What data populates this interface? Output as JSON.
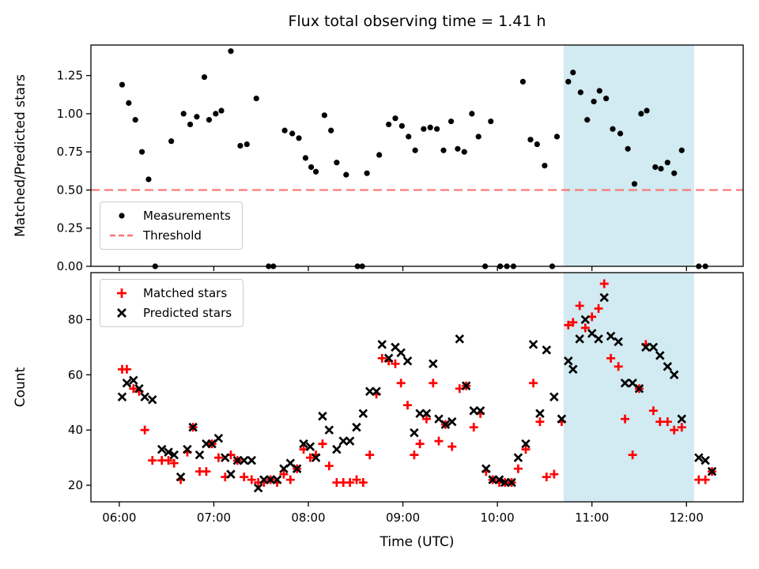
{
  "chart_data": [
    {
      "type": "scatter",
      "title": "Flux total observing time = 1.41 h",
      "xlabel": "",
      "ylabel": "Matched/Predicted stars",
      "xlim": [
        5.7,
        12.6
      ],
      "ylim": [
        0,
        1.45
      ],
      "xticks": [
        6,
        7,
        8,
        9,
        10,
        11,
        12
      ],
      "xtick_labels": [
        "06:00",
        "07:00",
        "08:00",
        "09:00",
        "10:00",
        "11:00",
        "12:00"
      ],
      "show_xtick_labels": false,
      "yticks": [
        0,
        0.25,
        0.5,
        0.75,
        1.0,
        1.25
      ],
      "ytick_labels": [
        "0.00",
        "0.25",
        "0.50",
        "0.75",
        "1.00",
        "1.25"
      ],
      "grid": false,
      "highlight_span": {
        "x0": 10.7,
        "x1": 12.08,
        "color": "#add8e6",
        "opacity": 0.55
      },
      "threshold": {
        "label": "Threshold",
        "value": 0.5,
        "color": "#fb7373",
        "style": "dashed"
      },
      "legend": {
        "position": "lower left",
        "entries": [
          "Measurements",
          "Threshold"
        ]
      },
      "series": [
        {
          "name": "Measurements",
          "marker": "dot",
          "color": "#000000",
          "points": [
            [
              6.03,
              1.19
            ],
            [
              6.1,
              1.07
            ],
            [
              6.17,
              0.96
            ],
            [
              6.24,
              0.75
            ],
            [
              6.31,
              0.57
            ],
            [
              6.38,
              0.0
            ],
            [
              6.55,
              0.82
            ],
            [
              6.68,
              1.0
            ],
            [
              6.75,
              0.93
            ],
            [
              6.82,
              0.98
            ],
            [
              6.9,
              1.24
            ],
            [
              6.95,
              0.96
            ],
            [
              7.02,
              1.0
            ],
            [
              7.08,
              1.02
            ],
            [
              7.18,
              1.41
            ],
            [
              7.28,
              0.79
            ],
            [
              7.35,
              0.8
            ],
            [
              7.45,
              1.1
            ],
            [
              7.58,
              0.0
            ],
            [
              7.63,
              0.0
            ],
            [
              7.75,
              0.89
            ],
            [
              7.83,
              0.87
            ],
            [
              7.9,
              0.84
            ],
            [
              7.97,
              0.71
            ],
            [
              8.03,
              0.65
            ],
            [
              8.08,
              0.62
            ],
            [
              8.17,
              0.99
            ],
            [
              8.24,
              0.89
            ],
            [
              8.3,
              0.68
            ],
            [
              8.4,
              0.6
            ],
            [
              8.52,
              0.0
            ],
            [
              8.57,
              0.0
            ],
            [
              8.62,
              0.61
            ],
            [
              8.75,
              0.73
            ],
            [
              8.85,
              0.93
            ],
            [
              8.92,
              0.97
            ],
            [
              8.99,
              0.92
            ],
            [
              9.06,
              0.85
            ],
            [
              9.13,
              0.76
            ],
            [
              9.22,
              0.9
            ],
            [
              9.29,
              0.91
            ],
            [
              9.36,
              0.9
            ],
            [
              9.43,
              0.76
            ],
            [
              9.51,
              0.95
            ],
            [
              9.58,
              0.77
            ],
            [
              9.65,
              0.75
            ],
            [
              9.73,
              1.0
            ],
            [
              9.8,
              0.85
            ],
            [
              9.87,
              0.0
            ],
            [
              9.93,
              0.95
            ],
            [
              10.03,
              0.0
            ],
            [
              10.1,
              0.0
            ],
            [
              10.17,
              0.0
            ],
            [
              10.27,
              1.21
            ],
            [
              10.35,
              0.83
            ],
            [
              10.42,
              0.8
            ],
            [
              10.5,
              0.66
            ],
            [
              10.58,
              0.0
            ],
            [
              10.63,
              0.85
            ],
            [
              10.75,
              1.21
            ],
            [
              10.8,
              1.27
            ],
            [
              10.88,
              1.14
            ],
            [
              10.95,
              0.96
            ],
            [
              11.02,
              1.08
            ],
            [
              11.08,
              1.15
            ],
            [
              11.15,
              1.1
            ],
            [
              11.22,
              0.9
            ],
            [
              11.3,
              0.87
            ],
            [
              11.38,
              0.77
            ],
            [
              11.45,
              0.54
            ],
            [
              11.52,
              1.0
            ],
            [
              11.58,
              1.02
            ],
            [
              11.67,
              0.65
            ],
            [
              11.73,
              0.64
            ],
            [
              11.8,
              0.68
            ],
            [
              11.87,
              0.61
            ],
            [
              11.95,
              0.76
            ],
            [
              12.13,
              0.0
            ],
            [
              12.2,
              0.0
            ]
          ]
        }
      ]
    },
    {
      "type": "scatter",
      "title": "",
      "xlabel": "Time (UTC)",
      "ylabel": "Count",
      "xlim": [
        5.7,
        12.6
      ],
      "ylim": [
        14,
        97
      ],
      "xticks": [
        6,
        7,
        8,
        9,
        10,
        11,
        12
      ],
      "xtick_labels": [
        "06:00",
        "07:00",
        "08:00",
        "09:00",
        "10:00",
        "11:00",
        "12:00"
      ],
      "show_xtick_labels": true,
      "yticks": [
        20,
        40,
        60,
        80
      ],
      "ytick_labels": [
        "20",
        "40",
        "60",
        "80"
      ],
      "grid": false,
      "highlight_span": {
        "x0": 10.7,
        "x1": 12.08,
        "color": "#add8e6",
        "opacity": 0.55
      },
      "legend": {
        "position": "upper left",
        "entries": [
          "Matched stars",
          "Predicted stars"
        ]
      },
      "series": [
        {
          "name": "Matched stars",
          "marker": "plus",
          "color": "#ff0000",
          "points": [
            [
              6.03,
              62
            ],
            [
              6.08,
              62
            ],
            [
              6.15,
              55
            ],
            [
              6.21,
              54
            ],
            [
              6.27,
              40
            ],
            [
              6.35,
              29
            ],
            [
              6.45,
              29
            ],
            [
              6.52,
              29
            ],
            [
              6.58,
              28
            ],
            [
              6.65,
              22
            ],
            [
              6.72,
              32
            ],
            [
              6.78,
              41
            ],
            [
              6.85,
              25
            ],
            [
              6.92,
              25
            ],
            [
              6.98,
              35
            ],
            [
              7.05,
              30
            ],
            [
              7.12,
              23
            ],
            [
              7.18,
              31
            ],
            [
              7.25,
              29
            ],
            [
              7.32,
              23
            ],
            [
              7.4,
              22
            ],
            [
              7.47,
              21
            ],
            [
              7.53,
              21
            ],
            [
              7.6,
              22
            ],
            [
              7.67,
              21
            ],
            [
              7.74,
              24
            ],
            [
              7.81,
              22
            ],
            [
              7.88,
              26
            ],
            [
              7.95,
              33
            ],
            [
              8.02,
              30
            ],
            [
              8.08,
              31
            ],
            [
              8.15,
              35
            ],
            [
              8.22,
              27
            ],
            [
              8.3,
              21
            ],
            [
              8.37,
              21
            ],
            [
              8.44,
              21
            ],
            [
              8.51,
              22
            ],
            [
              8.58,
              21
            ],
            [
              8.65,
              31
            ],
            [
              8.72,
              53
            ],
            [
              8.78,
              66
            ],
            [
              8.85,
              65
            ],
            [
              8.92,
              64
            ],
            [
              8.98,
              57
            ],
            [
              9.05,
              49
            ],
            [
              9.12,
              31
            ],
            [
              9.18,
              35
            ],
            [
              9.25,
              44
            ],
            [
              9.32,
              57
            ],
            [
              9.38,
              36
            ],
            [
              9.45,
              42
            ],
            [
              9.52,
              34
            ],
            [
              9.6,
              55
            ],
            [
              9.67,
              56
            ],
            [
              9.75,
              41
            ],
            [
              9.82,
              46
            ],
            [
              9.88,
              25
            ],
            [
              9.95,
              22
            ],
            [
              10.02,
              21
            ],
            [
              10.08,
              21
            ],
            [
              10.15,
              21
            ],
            [
              10.22,
              26
            ],
            [
              10.3,
              33
            ],
            [
              10.38,
              57
            ],
            [
              10.45,
              43
            ],
            [
              10.52,
              23
            ],
            [
              10.6,
              24
            ],
            [
              10.68,
              43
            ],
            [
              10.75,
              78
            ],
            [
              10.8,
              79
            ],
            [
              10.87,
              85
            ],
            [
              10.93,
              77
            ],
            [
              11.0,
              81
            ],
            [
              11.07,
              84
            ],
            [
              11.13,
              93
            ],
            [
              11.2,
              66
            ],
            [
              11.28,
              63
            ],
            [
              11.35,
              44
            ],
            [
              11.43,
              31
            ],
            [
              11.5,
              55
            ],
            [
              11.57,
              71
            ],
            [
              11.65,
              47
            ],
            [
              11.72,
              43
            ],
            [
              11.8,
              43
            ],
            [
              11.87,
              40
            ],
            [
              11.95,
              41
            ],
            [
              12.13,
              22
            ],
            [
              12.2,
              22
            ],
            [
              12.27,
              25
            ]
          ]
        },
        {
          "name": "Predicted stars",
          "marker": "x",
          "color": "#000000",
          "points": [
            [
              6.03,
              52
            ],
            [
              6.08,
              57
            ],
            [
              6.15,
              58
            ],
            [
              6.21,
              55
            ],
            [
              6.27,
              52
            ],
            [
              6.35,
              51
            ],
            [
              6.45,
              33
            ],
            [
              6.52,
              32
            ],
            [
              6.58,
              31
            ],
            [
              6.65,
              23
            ],
            [
              6.72,
              33
            ],
            [
              6.78,
              41
            ],
            [
              6.85,
              31
            ],
            [
              6.92,
              35
            ],
            [
              6.98,
              35
            ],
            [
              7.05,
              37
            ],
            [
              7.12,
              30
            ],
            [
              7.18,
              24
            ],
            [
              7.25,
              29
            ],
            [
              7.32,
              29
            ],
            [
              7.4,
              29
            ],
            [
              7.47,
              19
            ],
            [
              7.53,
              22
            ],
            [
              7.6,
              22
            ],
            [
              7.67,
              22
            ],
            [
              7.74,
              26
            ],
            [
              7.81,
              28
            ],
            [
              7.88,
              26
            ],
            [
              7.95,
              35
            ],
            [
              8.02,
              34
            ],
            [
              8.08,
              30
            ],
            [
              8.15,
              45
            ],
            [
              8.22,
              40
            ],
            [
              8.3,
              33
            ],
            [
              8.37,
              36
            ],
            [
              8.44,
              36
            ],
            [
              8.51,
              41
            ],
            [
              8.58,
              46
            ],
            [
              8.65,
              54
            ],
            [
              8.72,
              54
            ],
            [
              8.78,
              71
            ],
            [
              8.85,
              66
            ],
            [
              8.92,
              70
            ],
            [
              8.98,
              68
            ],
            [
              9.05,
              65
            ],
            [
              9.12,
              39
            ],
            [
              9.18,
              46
            ],
            [
              9.25,
              46
            ],
            [
              9.32,
              64
            ],
            [
              9.38,
              44
            ],
            [
              9.45,
              42
            ],
            [
              9.52,
              43
            ],
            [
              9.6,
              73
            ],
            [
              9.67,
              56
            ],
            [
              9.75,
              47
            ],
            [
              9.82,
              47
            ],
            [
              9.88,
              26
            ],
            [
              9.95,
              22
            ],
            [
              10.02,
              22
            ],
            [
              10.08,
              21
            ],
            [
              10.15,
              21
            ],
            [
              10.22,
              30
            ],
            [
              10.3,
              35
            ],
            [
              10.38,
              71
            ],
            [
              10.45,
              46
            ],
            [
              10.52,
              69
            ],
            [
              10.6,
              52
            ],
            [
              10.68,
              44
            ],
            [
              10.75,
              65
            ],
            [
              10.8,
              62
            ],
            [
              10.87,
              73
            ],
            [
              10.93,
              80
            ],
            [
              11.0,
              75
            ],
            [
              11.07,
              73
            ],
            [
              11.13,
              88
            ],
            [
              11.2,
              74
            ],
            [
              11.28,
              72
            ],
            [
              11.35,
              57
            ],
            [
              11.43,
              57
            ],
            [
              11.5,
              55
            ],
            [
              11.57,
              70
            ],
            [
              11.65,
              70
            ],
            [
              11.72,
              67
            ],
            [
              11.8,
              63
            ],
            [
              11.87,
              60
            ],
            [
              11.95,
              44
            ],
            [
              12.13,
              30
            ],
            [
              12.2,
              29
            ],
            [
              12.27,
              25
            ]
          ]
        }
      ]
    }
  ]
}
